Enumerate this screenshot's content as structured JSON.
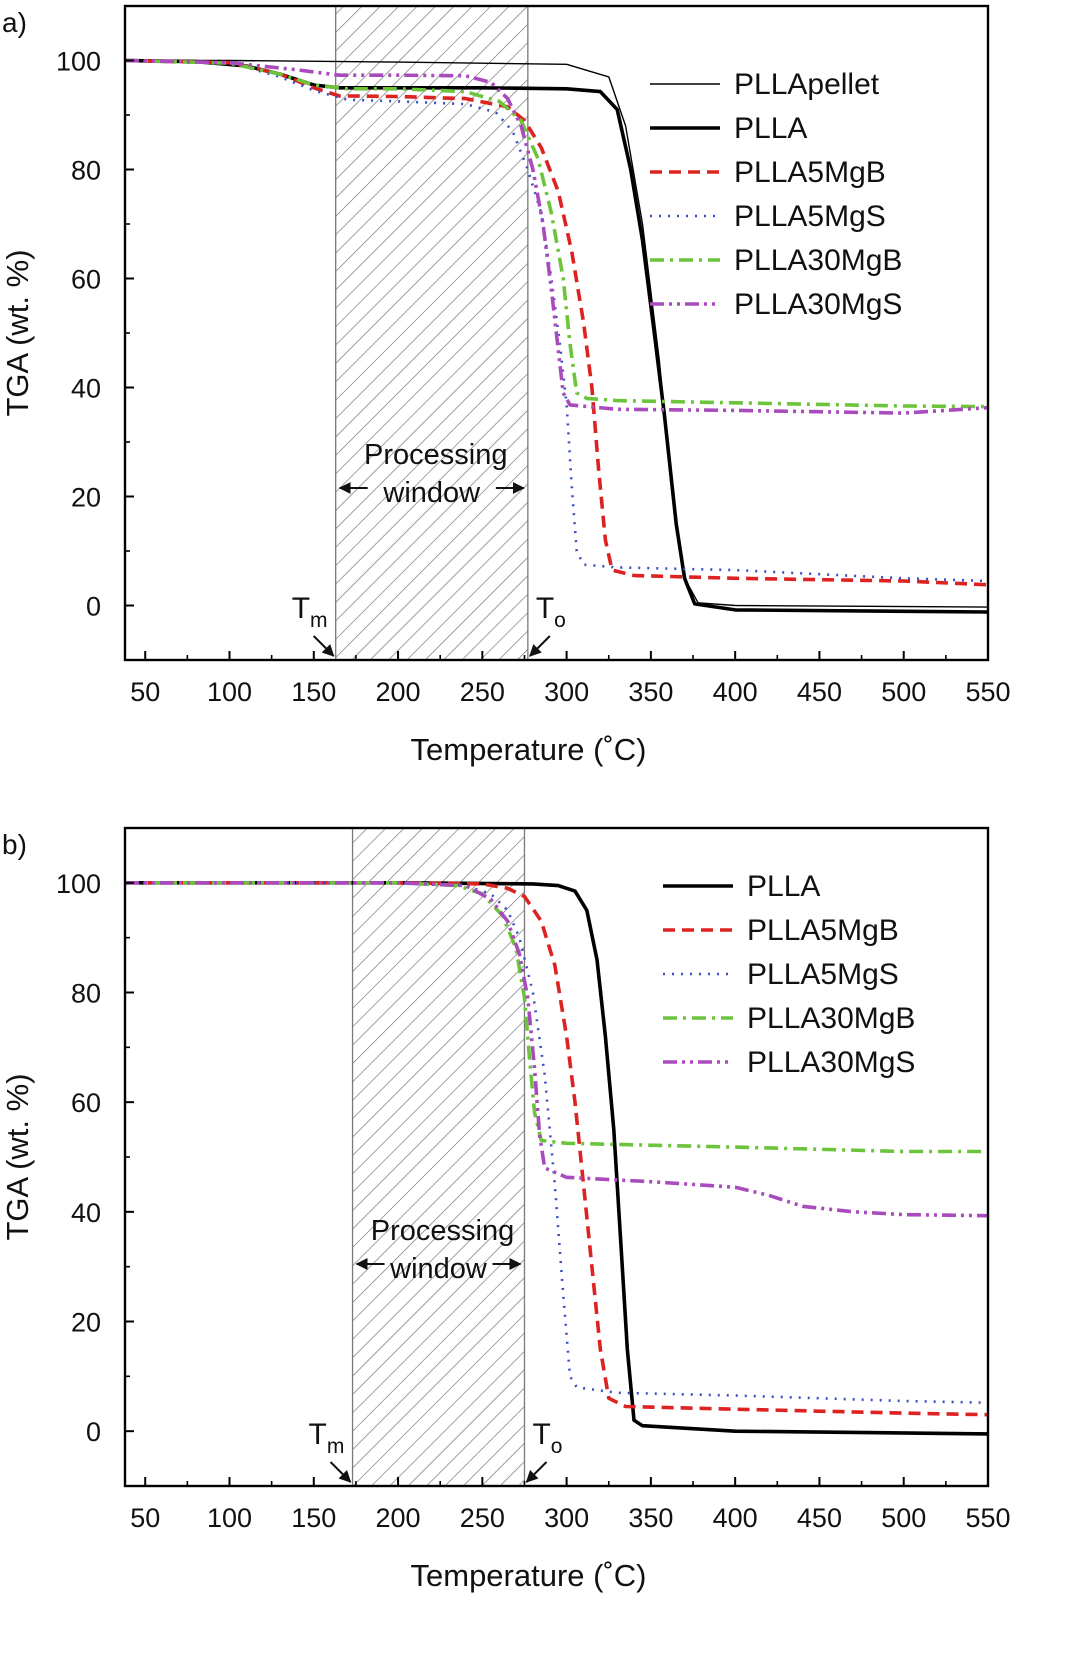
{
  "chart_data": [
    {
      "panel_label": "a)",
      "type": "line",
      "xlabel": "Temperature (˚C)",
      "ylabel": "TGA (wt. %)",
      "xlim": [
        38,
        550
      ],
      "ylim": [
        -10,
        110
      ],
      "x_ticks": [
        50,
        100,
        150,
        200,
        250,
        300,
        350,
        400,
        450,
        500,
        550
      ],
      "y_ticks": [
        0,
        20,
        40,
        60,
        80,
        100
      ],
      "grid": false,
      "legend_position": "top-right",
      "processing_window": {
        "x_start": 163,
        "x_end": 277,
        "label_line1": "Processing",
        "label_line2": "window"
      },
      "markers": [
        {
          "main": "T",
          "sub": "m",
          "x": 163
        },
        {
          "main": "T",
          "sub": "o",
          "x": 277
        }
      ],
      "series": [
        {
          "name": "PLLApellet",
          "color": "#000000",
          "style": "thin",
          "points": [
            [
              38,
              100
            ],
            [
              100,
              100
            ],
            [
              200,
              99.7
            ],
            [
              300,
              99.3
            ],
            [
              325,
              97
            ],
            [
              335,
              88
            ],
            [
              345,
              70
            ],
            [
              355,
              45
            ],
            [
              363,
              20
            ],
            [
              370,
              5
            ],
            [
              378,
              0.5
            ],
            [
              400,
              0
            ],
            [
              550,
              -0.3
            ]
          ]
        },
        {
          "name": "PLLA",
          "color": "#000000",
          "style": "thick",
          "points": [
            [
              38,
              100
            ],
            [
              80,
              99.8
            ],
            [
              110,
              99
            ],
            [
              130,
              97.5
            ],
            [
              150,
              95.5
            ],
            [
              165,
              95
            ],
            [
              200,
              95
            ],
            [
              250,
              95
            ],
            [
              300,
              94.8
            ],
            [
              320,
              94.3
            ],
            [
              330,
              91
            ],
            [
              338,
              80
            ],
            [
              345,
              67
            ],
            [
              352,
              50
            ],
            [
              358,
              35
            ],
            [
              365,
              15
            ],
            [
              370,
              5
            ],
            [
              376,
              0.3
            ],
            [
              400,
              -0.8
            ],
            [
              550,
              -1.2
            ]
          ]
        },
        {
          "name": "PLLA5MgB",
          "color": "#dd2222",
          "style": "dash",
          "points": [
            [
              38,
              100
            ],
            [
              100,
              99.6
            ],
            [
              130,
              97.5
            ],
            [
              150,
              95
            ],
            [
              165,
              93.5
            ],
            [
              200,
              93.4
            ],
            [
              240,
              93
            ],
            [
              265,
              91.5
            ],
            [
              275,
              89
            ],
            [
              285,
              84
            ],
            [
              295,
              76
            ],
            [
              303,
              65
            ],
            [
              310,
              52
            ],
            [
              315,
              40
            ],
            [
              319,
              25
            ],
            [
              323,
              12
            ],
            [
              327,
              6.5
            ],
            [
              340,
              5.5
            ],
            [
              400,
              5
            ],
            [
              500,
              4.5
            ],
            [
              550,
              3.8
            ]
          ]
        },
        {
          "name": "PLLA5MgS",
          "color": "#3b4fc4",
          "style": "dot",
          "points": [
            [
              38,
              100
            ],
            [
              100,
              99.6
            ],
            [
              130,
              97
            ],
            [
              150,
              94.5
            ],
            [
              170,
              92.8
            ],
            [
              200,
              92.5
            ],
            [
              240,
              92
            ],
            [
              258,
              90.5
            ],
            [
              268,
              87
            ],
            [
              277,
              80
            ],
            [
              285,
              72
            ],
            [
              291,
              60
            ],
            [
              296,
              48
            ],
            [
              300,
              37
            ],
            [
              303,
              22
            ],
            [
              306,
              10
            ],
            [
              310,
              7.5
            ],
            [
              330,
              7
            ],
            [
              400,
              6.5
            ],
            [
              500,
              5
            ],
            [
              550,
              4.5
            ]
          ]
        },
        {
          "name": "PLLA30MgB",
          "color": "#6cc43a",
          "style": "dashdot",
          "points": [
            [
              38,
              100
            ],
            [
              100,
              99.5
            ],
            [
              130,
              97.5
            ],
            [
              150,
              95.5
            ],
            [
              170,
              94.8
            ],
            [
              200,
              94.8
            ],
            [
              240,
              94.3
            ],
            [
              260,
              92.5
            ],
            [
              273,
              89
            ],
            [
              283,
              82
            ],
            [
              291,
              72
            ],
            [
              298,
              60
            ],
            [
              302,
              48
            ],
            [
              306,
              39
            ],
            [
              312,
              38
            ],
            [
              330,
              37.6
            ],
            [
              400,
              37.2
            ],
            [
              500,
              36.6
            ],
            [
              550,
              36.5
            ]
          ]
        },
        {
          "name": "PLLA30MgS",
          "color": "#a94bbd",
          "style": "dashdotdot",
          "points": [
            [
              38,
              100
            ],
            [
              100,
              99.6
            ],
            [
              140,
              98.3
            ],
            [
              165,
              97.3
            ],
            [
              200,
              97.3
            ],
            [
              240,
              97.2
            ],
            [
              255,
              96
            ],
            [
              265,
              93
            ],
            [
              273,
              88
            ],
            [
              280,
              80
            ],
            [
              286,
              70
            ],
            [
              291,
              58
            ],
            [
              295,
              47
            ],
            [
              298,
              39
            ],
            [
              302,
              36.8
            ],
            [
              330,
              36
            ],
            [
              400,
              35.8
            ],
            [
              500,
              35.3
            ],
            [
              550,
              36.3
            ]
          ]
        }
      ]
    },
    {
      "panel_label": "b)",
      "type": "line",
      "xlabel": "Temperature (˚C)",
      "ylabel": "TGA (wt. %)",
      "xlim": [
        38,
        550
      ],
      "ylim": [
        -10,
        110
      ],
      "x_ticks": [
        50,
        100,
        150,
        200,
        250,
        300,
        350,
        400,
        450,
        500,
        550
      ],
      "y_ticks": [
        0,
        20,
        40,
        60,
        80,
        100
      ],
      "grid": false,
      "legend_position": "top-right",
      "processing_window": {
        "x_start": 173,
        "x_end": 275,
        "label_line1": "Processing",
        "label_line2": "window"
      },
      "markers": [
        {
          "main": "T",
          "sub": "m",
          "x": 173
        },
        {
          "main": "T",
          "sub": "o",
          "x": 275
        }
      ],
      "series": [
        {
          "name": "PLLA",
          "color": "#000000",
          "style": "thick",
          "points": [
            [
              38,
              100
            ],
            [
              200,
              100
            ],
            [
              280,
              99.8
            ],
            [
              295,
              99.5
            ],
            [
              305,
              98.5
            ],
            [
              312,
              95
            ],
            [
              318,
              86
            ],
            [
              323,
              72
            ],
            [
              328,
              55
            ],
            [
              332,
              35
            ],
            [
              336,
              15
            ],
            [
              340,
              2
            ],
            [
              345,
              1
            ],
            [
              400,
              0
            ],
            [
              550,
              -0.5
            ]
          ]
        },
        {
          "name": "PLLA5MgB",
          "color": "#dd2222",
          "style": "dash",
          "points": [
            [
              38,
              100
            ],
            [
              200,
              100
            ],
            [
              250,
              99.8
            ],
            [
              265,
              99
            ],
            [
              275,
              97.5
            ],
            [
              285,
              93
            ],
            [
              293,
              85
            ],
            [
              300,
              72
            ],
            [
              305,
              60
            ],
            [
              310,
              45
            ],
            [
              315,
              30
            ],
            [
              320,
              15
            ],
            [
              325,
              6
            ],
            [
              335,
              4.5
            ],
            [
              400,
              4
            ],
            [
              500,
              3.3
            ],
            [
              550,
              3
            ]
          ]
        },
        {
          "name": "PLLA5MgS",
          "color": "#3b4fc4",
          "style": "dot",
          "points": [
            [
              38,
              100
            ],
            [
              200,
              100
            ],
            [
              240,
              99.5
            ],
            [
              255,
              98
            ],
            [
              265,
              95
            ],
            [
              272,
              90
            ],
            [
              280,
              80
            ],
            [
              287,
              65
            ],
            [
              293,
              45
            ],
            [
              298,
              25
            ],
            [
              302,
              10
            ],
            [
              306,
              8
            ],
            [
              330,
              7
            ],
            [
              400,
              6.5
            ],
            [
              500,
              5.5
            ],
            [
              550,
              5.2
            ]
          ]
        },
        {
          "name": "PLLA30MgB",
          "color": "#6cc43a",
          "style": "dashdot",
          "points": [
            [
              38,
              100
            ],
            [
              200,
              100
            ],
            [
              235,
              99.5
            ],
            [
              250,
              98
            ],
            [
              262,
              94
            ],
            [
              270,
              88
            ],
            [
              275,
              79
            ],
            [
              278,
              68
            ],
            [
              281,
              58
            ],
            [
              285,
              53
            ],
            [
              300,
              52.5
            ],
            [
              400,
              51.8
            ],
            [
              500,
              51
            ],
            [
              550,
              51
            ]
          ]
        },
        {
          "name": "PLLA30MgS",
          "color": "#a94bbd",
          "style": "dashdotdot",
          "points": [
            [
              38,
              100
            ],
            [
              200,
              100
            ],
            [
              240,
              99.5
            ],
            [
              255,
              97
            ],
            [
              265,
              93
            ],
            [
              272,
              87
            ],
            [
              277,
              79
            ],
            [
              281,
              66
            ],
            [
              284,
              54
            ],
            [
              287,
              48
            ],
            [
              300,
              46.3
            ],
            [
              350,
              45.5
            ],
            [
              400,
              44.5
            ],
            [
              420,
              43
            ],
            [
              440,
              41
            ],
            [
              470,
              40
            ],
            [
              500,
              39.5
            ],
            [
              550,
              39.3
            ]
          ]
        }
      ]
    }
  ]
}
